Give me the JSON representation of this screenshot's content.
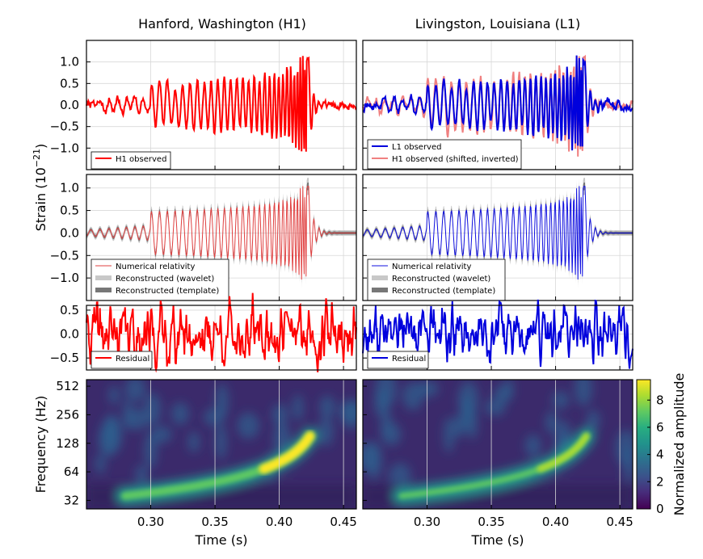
{
  "chart_data": {
    "type": "line",
    "column_titles": [
      "Hanford, Washington (H1)",
      "Livingston, Louisiana (L1)"
    ],
    "strain_label": "Strain (10",
    "strain_exp": "−21",
    "strain_close": ")",
    "frequency_label": "Frequency (Hz)",
    "time_label": "Time (s)",
    "colorbar_label": "Normalized amplitude",
    "colorbar_ticks": [
      "0",
      "2",
      "4",
      "6",
      "8"
    ],
    "x_range": [
      0.25,
      0.46
    ],
    "x_ticks": [
      "0.30",
      "0.35",
      "0.40",
      "0.45"
    ],
    "x_tick_values": [
      0.3,
      0.35,
      0.4,
      0.45
    ],
    "rows": {
      "observed": {
        "y_range": [
          -1.5,
          1.5
        ],
        "y_ticks": [
          "1.0",
          "0.5",
          "0.0",
          "−0.5",
          "−1.0"
        ],
        "y_tick_values": [
          1.0,
          0.5,
          0.0,
          -0.5,
          -1.0
        ],
        "legend_left": [
          "H1 observed"
        ],
        "legend_right": [
          "L1 observed",
          "H1 observed (shifted, inverted)"
        ]
      },
      "model": {
        "y_range": [
          -1.5,
          1.3
        ],
        "y_ticks": [
          "1.0",
          "0.5",
          "0.0",
          "−0.5",
          "−1.0"
        ],
        "y_tick_values": [
          1.0,
          0.5,
          0.0,
          -0.5,
          -1.0
        ],
        "legend": [
          "Numerical relativity",
          "Reconstructed (wavelet)",
          "Reconstructed (template)"
        ]
      },
      "residual": {
        "y_range": [
          -0.75,
          0.6
        ],
        "y_ticks": [
          "0.5",
          "0.0",
          "−0.5"
        ],
        "y_tick_values": [
          0.5,
          0.0,
          -0.5
        ],
        "legend": [
          "Residual"
        ]
      },
      "spectrogram": {
        "y_scale": "log2",
        "y_range": [
          26,
          600
        ],
        "y_ticks": [
          "512",
          "256",
          "128",
          "64",
          "32"
        ],
        "y_tick_values": [
          512,
          256,
          128,
          64,
          32
        ],
        "color_range": [
          0,
          9.5
        ],
        "colormap": "viridis"
      }
    },
    "series": [
      {
        "name": "H1 observed",
        "color": "#ff0000"
      },
      {
        "name": "L1 observed",
        "color": "#0000dd"
      },
      {
        "name": "H1 observed (shifted, inverted)",
        "color": "#f08080"
      },
      {
        "name": "Numerical relativity",
        "color": "#e04040"
      },
      {
        "name": "Reconstructed (wavelet)",
        "color": "#c8c8c8"
      },
      {
        "name": "Reconstructed (template)",
        "color": "#777777"
      },
      {
        "name": "Residual",
        "color": "#ff0000"
      }
    ],
    "grid": true
  }
}
